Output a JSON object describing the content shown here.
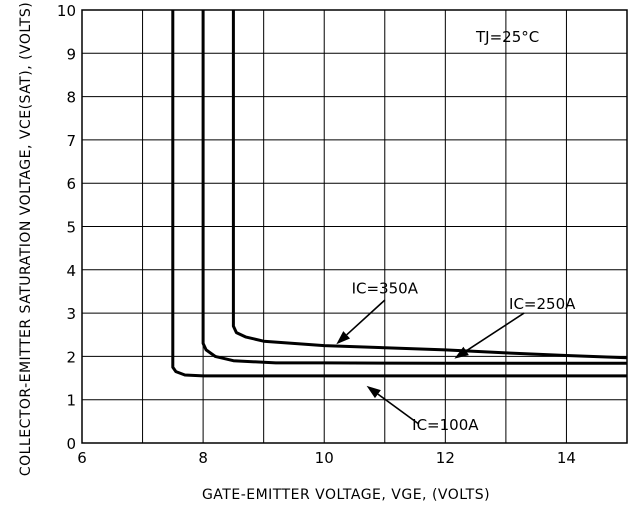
{
  "chart_data": {
    "type": "line",
    "xlabel": "GATE-EMITTER VOLTAGE, VGE, (VOLTS)",
    "ylabel": "COLLECTOR-EMITTER SATURATION VOLTAGE, VCE(SAT), (VOLTS)",
    "xlim": [
      6,
      15
    ],
    "ylim": [
      0,
      10
    ],
    "x_ticks": [
      6,
      8,
      10,
      12,
      14
    ],
    "y_ticks": [
      0,
      1,
      2,
      3,
      4,
      5,
      6,
      7,
      8,
      9,
      10
    ],
    "grid": true,
    "annotation_text": "TJ=25°C",
    "series": [
      {
        "name": "IC=100A",
        "x": [
          7.5,
          7.5,
          7.55,
          7.7,
          8.0,
          9.0,
          10.0,
          12.0,
          15.0
        ],
        "y": [
          10.0,
          1.75,
          1.65,
          1.57,
          1.55,
          1.55,
          1.55,
          1.55,
          1.55
        ]
      },
      {
        "name": "IC=250A",
        "x": [
          8.0,
          8.0,
          8.05,
          8.2,
          8.5,
          9.2,
          10.0,
          12.0,
          15.0
        ],
        "y": [
          10.0,
          2.3,
          2.15,
          2.0,
          1.9,
          1.85,
          1.85,
          1.84,
          1.84
        ]
      },
      {
        "name": "IC=350A",
        "x": [
          8.5,
          8.5,
          8.55,
          8.7,
          9.0,
          10.0,
          11.0,
          12.0,
          13.0,
          14.0,
          15.0
        ],
        "y": [
          10.0,
          2.7,
          2.55,
          2.45,
          2.35,
          2.25,
          2.2,
          2.15,
          2.08,
          2.02,
          1.97
        ]
      }
    ],
    "labels": [
      {
        "text": "IC=350A",
        "series": "IC=350A",
        "label_x": 11.0,
        "label_y": 3.45,
        "text_x": 11.0,
        "text_y": 3.3,
        "tip_x": 10.2,
        "tip_y": 2.28
      },
      {
        "text": "IC=250A",
        "series": "IC=250A",
        "label_x": 13.6,
        "label_y": 3.1,
        "text_x": 13.3,
        "text_y": 3.0,
        "tip_x": 12.15,
        "tip_y": 1.95
      },
      {
        "text": "IC=100A",
        "series": "IC=100A",
        "label_x": 12.0,
        "label_y": 0.3,
        "text_x": 11.55,
        "text_y": 0.45,
        "tip_x": 10.7,
        "tip_y": 1.32
      }
    ]
  }
}
